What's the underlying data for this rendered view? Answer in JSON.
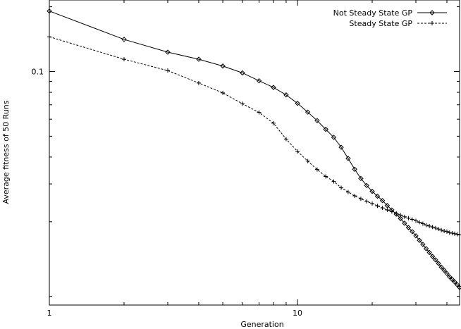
{
  "chart_data": {
    "type": "line",
    "title": "",
    "xlabel": "Generation",
    "ylabel": "Average fitness of 50 Runs",
    "x_scale": "log",
    "y_scale": "log",
    "xlim": [
      1,
      45
    ],
    "ylim": [
      0.0082,
      0.215
    ],
    "x_tick_labels": [
      {
        "value": 1,
        "label": "1"
      },
      {
        "value": 10,
        "label": "10"
      }
    ],
    "y_tick_labels": [
      {
        "value": 0.1,
        "label": "0.1"
      }
    ],
    "grid": false,
    "legend_position": "top-right",
    "series": [
      {
        "name": "Not Steady State GP",
        "line_style": "solid",
        "marker": "diamond",
        "color": "#000000",
        "x": [
          1,
          2,
          3,
          4,
          5,
          6,
          7,
          8,
          9,
          10,
          11,
          12,
          13,
          14,
          15,
          16,
          17,
          18,
          19,
          20,
          21,
          22,
          23,
          24,
          25,
          26,
          27,
          28,
          29,
          30,
          31,
          32,
          33,
          34,
          35,
          36,
          37,
          38,
          39,
          40,
          41,
          42,
          43,
          44,
          45
        ],
        "y": [
          0.191,
          0.141,
          0.123,
          0.114,
          0.106,
          0.0985,
          0.0905,
          0.0843,
          0.0778,
          0.0711,
          0.0647,
          0.0591,
          0.0538,
          0.0494,
          0.0444,
          0.0394,
          0.0351,
          0.0318,
          0.0295,
          0.0277,
          0.0263,
          0.0251,
          0.0238,
          0.0227,
          0.0217,
          0.0207,
          0.0197,
          0.0188,
          0.018,
          0.0172,
          0.0164,
          0.0157,
          0.015,
          0.0144,
          0.0138,
          0.0133,
          0.0128,
          0.0123,
          0.0119,
          0.0115,
          0.0111,
          0.0108,
          0.0105,
          0.0102,
          0.0099
        ]
      },
      {
        "name": "Steady State GP",
        "line_style": "dashed",
        "marker": "plus",
        "color": "#000000",
        "x": [
          1,
          2,
          3,
          4,
          5,
          6,
          7,
          8,
          9,
          10,
          11,
          12,
          13,
          14,
          15,
          16,
          17,
          18,
          19,
          20,
          21,
          22,
          23,
          24,
          25,
          26,
          27,
          28,
          29,
          30,
          31,
          32,
          33,
          34,
          35,
          36,
          37,
          38,
          39,
          40,
          41,
          42,
          43,
          44,
          45
        ],
        "y": [
          0.145,
          0.114,
          0.101,
          0.0884,
          0.0795,
          0.0708,
          0.0645,
          0.0575,
          0.0485,
          0.0425,
          0.0383,
          0.035,
          0.0325,
          0.0308,
          0.0288,
          0.0275,
          0.0264,
          0.0256,
          0.0249,
          0.0243,
          0.0237,
          0.0232,
          0.0227,
          0.0223,
          0.0219,
          0.0215,
          0.0211,
          0.0208,
          0.0205,
          0.0202,
          0.0199,
          0.0196,
          0.0193,
          0.0191,
          0.0189,
          0.0187,
          0.0185,
          0.0183,
          0.0181,
          0.018,
          0.0178,
          0.0177,
          0.0176,
          0.0175,
          0.0174
        ]
      }
    ]
  }
}
